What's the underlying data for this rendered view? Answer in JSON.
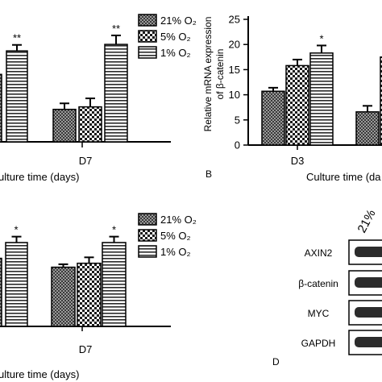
{
  "colors": {
    "axis": "#000000",
    "band": "#2c2c2c",
    "background": "#ffffff"
  },
  "panel_labels": {
    "b": "B",
    "d": "D"
  },
  "western_blot": {
    "header": "21%",
    "rows": [
      "AXIN2",
      "β-catenin",
      "MYC",
      "GAPDH"
    ]
  },
  "chart_data": [
    {
      "id": "panel-a",
      "type": "bar",
      "categories": [
        "D7"
      ],
      "series": [
        {
          "name": "21% O₂",
          "values": [
            6.5
          ]
        },
        {
          "name": "5% O₂",
          "values": [
            7.0
          ]
        },
        {
          "name": "1% O₂",
          "values": [
            19.5
          ]
        }
      ],
      "errors": [
        [
          1.2
        ],
        [
          1.7
        ],
        [
          1.8
        ]
      ],
      "annotations": [
        {
          "category": "D7",
          "series": 2,
          "text": "**"
        }
      ],
      "offscreen": {
        "visible_values": [
          13.5,
          18.2
        ],
        "annotation": "**"
      },
      "xlabel": "ulture time (days)",
      "ylim": [
        0,
        25
      ],
      "legend": "top-right"
    },
    {
      "id": "panel-b",
      "type": "bar",
      "categories": [
        "D3"
      ],
      "series": [
        {
          "name": "21% O₂",
          "values": [
            10.7
          ]
        },
        {
          "name": "5% O₂",
          "values": [
            15.8
          ]
        },
        {
          "name": "1% O₂",
          "values": [
            18.3
          ]
        }
      ],
      "errors": [
        [
          0.7
        ],
        [
          1.2
        ],
        [
          1.5
        ]
      ],
      "annotations": [
        {
          "category": "D3",
          "series": 2,
          "text": "*"
        }
      ],
      "partial": [
        {
          "value": 6.6,
          "error": 1.2
        }
      ],
      "ylabel_lines": [
        "Relative mRNA expression",
        "of β-catenin"
      ],
      "xlabel": "Culture time (da",
      "ylim": [
        0,
        25
      ],
      "yticks": [
        0,
        5,
        10,
        15,
        20,
        25
      ]
    },
    {
      "id": "panel-c",
      "type": "bar",
      "categories": [
        "D7"
      ],
      "series": [
        {
          "name": "21% O₂",
          "values": [
            12.0
          ]
        },
        {
          "name": "5% O₂",
          "values": [
            12.8
          ]
        },
        {
          "name": "1% O₂",
          "values": [
            17.0
          ]
        }
      ],
      "errors": [
        [
          0.6
        ],
        [
          1.2
        ],
        [
          1.2
        ]
      ],
      "annotations": [
        {
          "category": "D7",
          "series": 2,
          "text": "*"
        }
      ],
      "offscreen": {
        "visible_values": [
          13.8,
          17.0
        ],
        "annotation": "*"
      },
      "xlabel": "ulture time (days)",
      "ylim": [
        0,
        25
      ],
      "legend": "top-right"
    }
  ]
}
